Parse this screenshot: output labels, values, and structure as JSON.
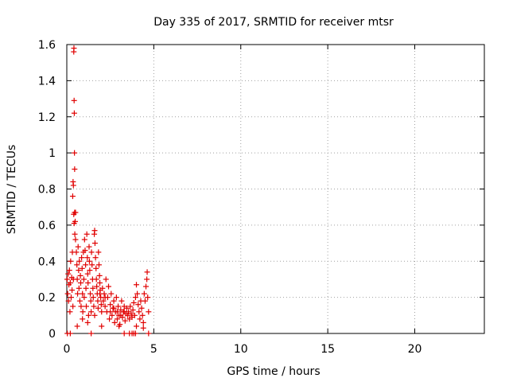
{
  "chart_data": {
    "type": "scatter",
    "title": "Day 335 of 2017, SRMTID for receiver mtsr",
    "xlabel": "GPS time / hours",
    "ylabel": "SRMTID / TECUs",
    "xlim": [
      0,
      24
    ],
    "ylim": [
      0,
      1.6
    ],
    "grid": true,
    "x_ticks": [
      0,
      5,
      10,
      15,
      20
    ],
    "x_tick_labels": [
      "0",
      "5",
      "10",
      "15",
      "20"
    ],
    "y_ticks": [
      0,
      0.2,
      0.4,
      0.6,
      0.8,
      1.0,
      1.2,
      1.4,
      1.6
    ],
    "y_tick_labels": [
      "0",
      "0.2",
      "0.4",
      "0.6",
      "0.8",
      "1",
      "1.2",
      "1.4",
      "1.6"
    ],
    "series": [
      {
        "name": "SRMTID",
        "marker": "+",
        "color": "#e00000",
        "points": [
          [
            0.02,
            0.3
          ],
          [
            0.05,
            0.22
          ],
          [
            0.08,
            0.33
          ],
          [
            0.1,
            0.18
          ],
          [
            0.12,
            0.27
          ],
          [
            0.15,
            0.35
          ],
          [
            0.18,
            0.12
          ],
          [
            0.2,
            0.28
          ],
          [
            0.22,
            0.4
          ],
          [
            0.25,
            0.2
          ],
          [
            0.28,
            0.31
          ],
          [
            0.3,
            0.24
          ],
          [
            0.32,
            0.45
          ],
          [
            0.35,
            0.15
          ],
          [
            0.38,
            0.3
          ],
          [
            0.4,
            1.56
          ],
          [
            0.41,
            1.58
          ],
          [
            0.42,
            1.29
          ],
          [
            0.43,
            1.22
          ],
          [
            0.44,
            1.0
          ],
          [
            0.45,
            0.91
          ],
          [
            0.36,
            0.84
          ],
          [
            0.38,
            0.82
          ],
          [
            0.34,
            0.76
          ],
          [
            0.4,
            0.66
          ],
          [
            0.45,
            0.67
          ],
          [
            0.5,
            0.67
          ],
          [
            0.42,
            0.61
          ],
          [
            0.48,
            0.62
          ],
          [
            0.46,
            0.55
          ],
          [
            0.5,
            0.52
          ],
          [
            0.55,
            0.45
          ],
          [
            0.58,
            0.38
          ],
          [
            0.6,
            0.3
          ],
          [
            0.62,
            0.22
          ],
          [
            0.65,
            0.48
          ],
          [
            0.68,
            0.35
          ],
          [
            0.7,
            0.25
          ],
          [
            0.72,
            0.4
          ],
          [
            0.75,
            0.18
          ],
          [
            0.78,
            0.32
          ],
          [
            0.8,
            0.28
          ],
          [
            0.82,
            0.15
          ],
          [
            0.85,
            0.42
          ],
          [
            0.88,
            0.36
          ],
          [
            0.9,
            0.22
          ],
          [
            0.92,
            0.12
          ],
          [
            0.95,
            0.45
          ],
          [
            0.98,
            0.3
          ],
          [
            1.0,
            0.2
          ],
          [
            1.02,
            0.52
          ],
          [
            1.05,
            0.46
          ],
          [
            1.08,
            0.38
          ],
          [
            1.1,
            0.25
          ],
          [
            1.12,
            0.15
          ],
          [
            1.15,
            0.55
          ],
          [
            1.18,
            0.42
          ],
          [
            1.2,
            0.33
          ],
          [
            1.22,
            0.28
          ],
          [
            1.25,
            0.1
          ],
          [
            1.28,
            0.48
          ],
          [
            1.3,
            0.4
          ],
          [
            1.32,
            0.35
          ],
          [
            1.35,
            0.22
          ],
          [
            1.38,
            0.18
          ],
          [
            1.4,
            0.12
          ],
          [
            1.42,
            0.45
          ],
          [
            1.45,
            0.38
          ],
          [
            1.48,
            0.3
          ],
          [
            1.5,
            0.25
          ],
          [
            1.52,
            0.2
          ],
          [
            1.55,
            0.15
          ],
          [
            1.58,
            0.55
          ],
          [
            1.6,
            0.57
          ],
          [
            1.62,
            0.5
          ],
          [
            1.65,
            0.42
          ],
          [
            1.68,
            0.36
          ],
          [
            1.7,
            0.3
          ],
          [
            1.72,
            0.26
          ],
          [
            1.75,
            0.22
          ],
          [
            1.78,
            0.18
          ],
          [
            1.8,
            0.14
          ],
          [
            1.82,
            0.45
          ],
          [
            1.85,
            0.38
          ],
          [
            1.88,
            0.32
          ],
          [
            1.9,
            0.28
          ],
          [
            1.92,
            0.24
          ],
          [
            1.95,
            0.2
          ],
          [
            1.98,
            0.16
          ],
          [
            2.0,
            0.12
          ],
          [
            2.05,
            0.25
          ],
          [
            2.1,
            0.18
          ],
          [
            2.15,
            0.22
          ],
          [
            2.2,
            0.15
          ],
          [
            2.25,
            0.3
          ],
          [
            2.3,
            0.12
          ],
          [
            2.35,
            0.2
          ],
          [
            2.4,
            0.26
          ],
          [
            2.45,
            0.08
          ],
          [
            2.5,
            0.16
          ],
          [
            2.55,
            0.22
          ],
          [
            2.6,
            0.1
          ],
          [
            2.65,
            0.14
          ],
          [
            2.7,
            0.18
          ],
          [
            2.75,
            0.06
          ],
          [
            2.8,
            0.12
          ],
          [
            2.85,
            0.2
          ],
          [
            2.9,
            0.08
          ],
          [
            2.95,
            0.15
          ],
          [
            3.0,
            0.1
          ],
          [
            3.05,
            0.05
          ],
          [
            3.1,
            0.13
          ],
          [
            3.15,
            0.18
          ],
          [
            3.2,
            0.09
          ],
          [
            3.25,
            0.12
          ],
          [
            3.3,
            0.15
          ],
          [
            3.35,
            0.07
          ],
          [
            3.4,
            0.11
          ],
          [
            3.45,
            0.14
          ],
          [
            3.5,
            0.1
          ],
          [
            3.55,
            0.12
          ],
          [
            3.6,
            0.08
          ],
          [
            3.65,
            0.15
          ],
          [
            3.7,
            0.11
          ],
          [
            3.75,
            0.09
          ],
          [
            3.8,
            0.13
          ],
          [
            3.85,
            0.17
          ],
          [
            3.9,
            0.1
          ],
          [
            3.95,
            0.2
          ],
          [
            4.0,
            0.27
          ],
          [
            4.05,
            0.22
          ],
          [
            4.1,
            0.16
          ],
          [
            4.15,
            0.12
          ],
          [
            4.2,
            0.08
          ],
          [
            4.25,
            0.18
          ],
          [
            4.3,
            0.14
          ],
          [
            4.35,
            0.1
          ],
          [
            4.4,
            0.06
          ],
          [
            4.45,
            0.22
          ],
          [
            4.5,
            0.18
          ],
          [
            4.55,
            0.26
          ],
          [
            4.6,
            0.3
          ],
          [
            4.62,
            0.34
          ],
          [
            4.65,
            0.2
          ],
          [
            4.7,
            0.12
          ],
          [
            2.9,
            0.12
          ],
          [
            3.1,
            0.1
          ],
          [
            3.3,
            0.12
          ],
          [
            2.7,
            0.14
          ],
          [
            2.5,
            0.12
          ],
          [
            2.2,
            0.2
          ],
          [
            1.9,
            0.22
          ],
          [
            0.6,
            0.04
          ],
          [
            1.2,
            0.06
          ],
          [
            2.0,
            0.04
          ],
          [
            3.0,
            0.04
          ],
          [
            4.0,
            0.04
          ],
          [
            4.4,
            0.03
          ],
          [
            0.9,
            0.08
          ],
          [
            1.6,
            0.1
          ],
          [
            0.03,
            0.0
          ],
          [
            0.2,
            0.0
          ],
          [
            1.4,
            0.0
          ],
          [
            3.3,
            0.0
          ],
          [
            3.6,
            0.0
          ],
          [
            3.75,
            0.0
          ],
          [
            3.85,
            0.0
          ],
          [
            3.95,
            0.0
          ],
          [
            4.7,
            0.0
          ]
        ]
      }
    ]
  }
}
